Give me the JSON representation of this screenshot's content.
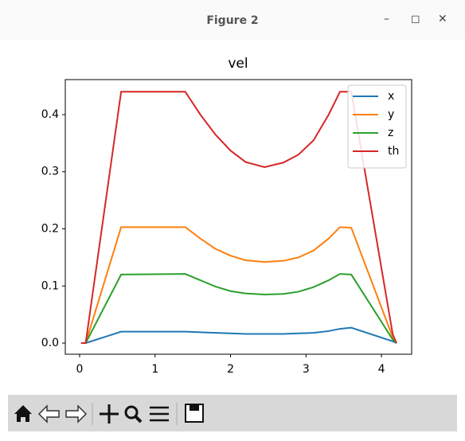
{
  "window": {
    "title": "Figure 2"
  },
  "chart_data": {
    "type": "line",
    "title": "vel",
    "x": [
      0.02,
      0.08,
      0.55,
      1.4,
      1.6,
      1.8,
      2.0,
      2.2,
      2.45,
      2.7,
      2.9,
      3.1,
      3.3,
      3.45,
      3.6,
      4.15,
      4.2
    ],
    "series": [
      {
        "name": "x",
        "color": "#1f77b4",
        "values": [
          0,
          0,
          0.02,
          0.02,
          0.019,
          0.018,
          0.017,
          0.016,
          0.016,
          0.016,
          0.017,
          0.018,
          0.021,
          0.025,
          0.027,
          0.003,
          0
        ]
      },
      {
        "name": "y",
        "color": "#ff7f0e",
        "values": [
          0,
          0,
          0.203,
          0.203,
          0.183,
          0.165,
          0.153,
          0.145,
          0.142,
          0.144,
          0.15,
          0.162,
          0.183,
          0.203,
          0.202,
          0.01,
          0
        ]
      },
      {
        "name": "z",
        "color": "#2ca02c",
        "values": [
          0,
          0,
          0.12,
          0.121,
          0.11,
          0.099,
          0.091,
          0.087,
          0.085,
          0.086,
          0.09,
          0.098,
          0.11,
          0.121,
          0.12,
          0.006,
          0
        ]
      },
      {
        "name": "th",
        "color": "#d62728",
        "values": [
          0,
          0,
          0.44,
          0.44,
          0.4,
          0.365,
          0.337,
          0.317,
          0.308,
          0.316,
          0.33,
          0.355,
          0.4,
          0.44,
          0.44,
          0.015,
          0
        ]
      }
    ],
    "xlim": [
      -0.19,
      4.4
    ],
    "xticks": [
      0,
      1,
      2,
      3,
      4
    ],
    "ylim": [
      -0.0195,
      0.4613
    ],
    "yticks": [
      {
        "value": 0,
        "label": "0.0"
      },
      0.1,
      0.2,
      0.3,
      0.4
    ],
    "legend": "upper right",
    "grid": false
  }
}
